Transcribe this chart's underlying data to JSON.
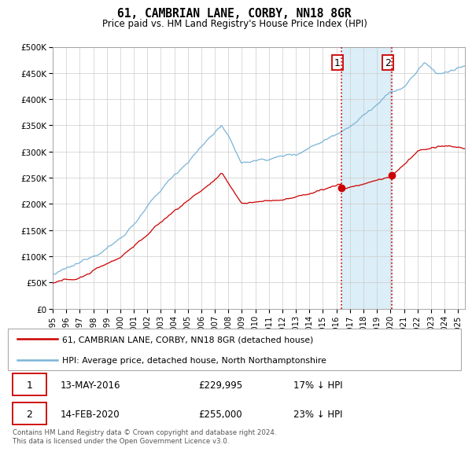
{
  "title": "61, CAMBRIAN LANE, CORBY, NN18 8GR",
  "subtitle": "Price paid vs. HM Land Registry's House Price Index (HPI)",
  "ylim": [
    0,
    500000
  ],
  "yticks": [
    0,
    50000,
    100000,
    150000,
    200000,
    250000,
    300000,
    350000,
    400000,
    450000,
    500000
  ],
  "ytick_labels": [
    "£0",
    "£50K",
    "£100K",
    "£150K",
    "£200K",
    "£250K",
    "£300K",
    "£350K",
    "£400K",
    "£450K",
    "£500K"
  ],
  "sale1": {
    "date_num": 2016.37,
    "price": 229995,
    "label": "1"
  },
  "sale2": {
    "date_num": 2020.12,
    "price": 255000,
    "label": "2"
  },
  "hpi_color": "#7ab4d8",
  "price_color": "#cc0000",
  "dot_color": "#cc0000",
  "vline_color": "#cc0000",
  "span_color": "#dceef7",
  "legend_entries": [
    "61, CAMBRIAN LANE, CORBY, NN18 8GR (detached house)",
    "HPI: Average price, detached house, North Northamptonshire"
  ],
  "table_rows": [
    [
      "1",
      "13-MAY-2016",
      "£229,995",
      "17% ↓ HPI"
    ],
    [
      "2",
      "14-FEB-2020",
      "£255,000",
      "23% ↓ HPI"
    ]
  ],
  "footnote": "Contains HM Land Registry data © Crown copyright and database right 2024.\nThis data is licensed under the Open Government Licence v3.0.",
  "xmin": 1995,
  "xmax": 2025.5
}
